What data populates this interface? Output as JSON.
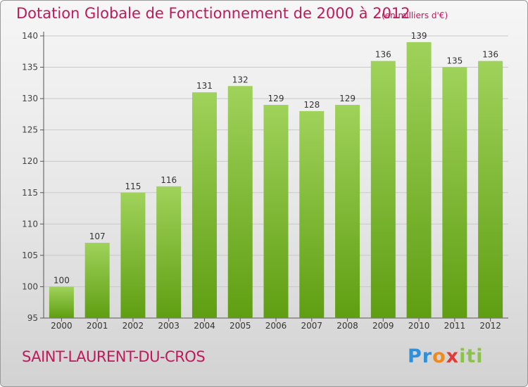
{
  "header": {
    "title": "Dotation Globale de Fonctionnement de 2000 à 2012",
    "unit": "(en milliers d'€)"
  },
  "footer": {
    "commune": "SAINT-LAURENT-DU-CROS",
    "logo": "Proxiti",
    "logo_parts": [
      "Pr",
      "o",
      "x",
      "iti"
    ]
  },
  "colors": {
    "bar_light": "#9fd25a",
    "bar_dark": "#5f9e12",
    "text_accent": "#c2185b",
    "grid": "#c8c8c8"
  },
  "chart_data": {
    "type": "bar",
    "title": "Dotation Globale de Fonctionnement de 2000 à 2012",
    "xlabel": "",
    "ylabel": "",
    "categories": [
      "2000",
      "2001",
      "2002",
      "2003",
      "2004",
      "2005",
      "2006",
      "2007",
      "2008",
      "2009",
      "2010",
      "2011",
      "2012"
    ],
    "values": [
      100,
      107,
      115,
      116,
      131,
      132,
      129,
      128,
      129,
      136,
      139,
      135,
      136
    ],
    "ylim": [
      95,
      140
    ],
    "yticks": [
      95,
      100,
      105,
      110,
      115,
      120,
      125,
      130,
      135,
      140
    ],
    "grid": true
  }
}
